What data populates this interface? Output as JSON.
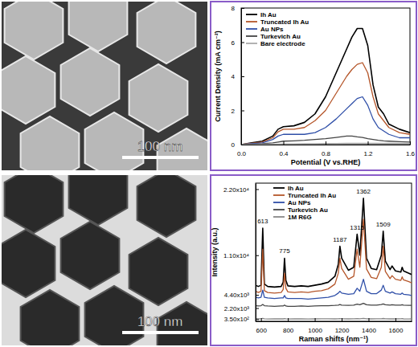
{
  "chart_data": [
    {
      "type": "line",
      "x_label": "Potential (V vs.RHE)",
      "y_label": "Current Density (mA cm⁻²)",
      "x": [
        0,
        0.1,
        0.2,
        0.3,
        0.35,
        0.4,
        0.5,
        0.6,
        0.7,
        0.8,
        0.9,
        1.0,
        1.05,
        1.1,
        1.15,
        1.2,
        1.25,
        1.3,
        1.35,
        1.4,
        1.5,
        1.6
      ],
      "xlim": [
        0,
        1.6
      ],
      "xticks": [
        {
          "value": 0,
          "label": "0.0"
        },
        {
          "value": 0.4,
          "label": "0.4"
        },
        {
          "value": 0.8,
          "label": "0.8"
        },
        {
          "value": 1.2,
          "label": "1.2"
        },
        {
          "value": 1.6,
          "label": "1.6"
        }
      ],
      "ylim": [
        0,
        8
      ],
      "yticks": [
        0,
        2,
        4,
        6,
        8
      ],
      "legend": "top-left",
      "series": [
        {
          "name": "Ih Au",
          "color": "#000000",
          "values": [
            0,
            0.1,
            0.2,
            0.5,
            0.9,
            1.05,
            1.1,
            1.3,
            1.8,
            2.8,
            4.2,
            5.6,
            6.3,
            6.8,
            6.8,
            5.8,
            3.5,
            2.2,
            1.8,
            1.2,
            0.9,
            0.7
          ]
        },
        {
          "name": "Truncated Ih Au",
          "color": "#b5562a",
          "values": [
            0,
            0.08,
            0.15,
            0.4,
            0.75,
            0.9,
            0.9,
            1.0,
            1.4,
            2.0,
            3.0,
            4.0,
            4.4,
            4.7,
            4.8,
            4.2,
            2.8,
            1.8,
            1.4,
            1.0,
            0.7,
            0.6
          ]
        },
        {
          "name": "Au NPs",
          "color": "#2f4fa8",
          "values": [
            0,
            0.05,
            0.1,
            0.3,
            0.5,
            0.6,
            0.6,
            0.6,
            0.7,
            1.0,
            1.5,
            2.1,
            2.4,
            2.7,
            2.8,
            2.3,
            1.5,
            1.0,
            0.8,
            0.6,
            0.4,
            0.4
          ]
        },
        {
          "name": "Turkevich Au",
          "color": "#444444",
          "values": [
            0,
            0.02,
            0.05,
            0.1,
            0.15,
            0.2,
            0.22,
            0.25,
            0.3,
            0.35,
            0.42,
            0.5,
            0.5,
            0.45,
            0.42,
            0.35,
            0.3,
            0.25,
            0.22,
            0.2,
            0.17,
            0.15
          ]
        },
        {
          "name": "Bare electrode",
          "color": "#aaaaaa",
          "values": [
            0,
            0.01,
            0.02,
            0.03,
            0.03,
            0.04,
            0.04,
            0.05,
            0.05,
            0.06,
            0.06,
            0.07,
            0.07,
            0.07,
            0.07,
            0.07,
            0.07,
            0.07,
            0.07,
            0.07,
            0.07,
            0.07
          ]
        }
      ]
    },
    {
      "type": "line",
      "x_label": "Raman shifts (nm⁻¹)",
      "y_label": "Intensity (a.u.)",
      "x": [
        560,
        580,
        600,
        613,
        625,
        650,
        700,
        750,
        765,
        775,
        785,
        800,
        850,
        900,
        950,
        1000,
        1050,
        1100,
        1150,
        1175,
        1187,
        1200,
        1250,
        1290,
        1315,
        1335,
        1362,
        1385,
        1420,
        1460,
        1495,
        1509,
        1525,
        1560,
        1575,
        1600,
        1640,
        1650,
        1660,
        1700,
        1720
      ],
      "xlim": [
        560,
        1720
      ],
      "xticks": [
        600,
        800,
        1000,
        1200,
        1400,
        1600
      ],
      "ylim": [
        0,
        23000
      ],
      "yticks": [
        {
          "value": 350,
          "label": "3.50x10²"
        },
        {
          "value": 2200,
          "label": "2.20x10³"
        },
        {
          "value": 4400,
          "label": "4.40x10³"
        },
        {
          "value": 11000,
          "label": "1.10x10⁴"
        },
        {
          "value": 22000,
          "label": "2.20x10⁴"
        }
      ],
      "legend": "top-left",
      "annotations": [
        {
          "text": "613",
          "x": 613,
          "y": 16300
        },
        {
          "text": "775",
          "x": 775,
          "y": 11300
        },
        {
          "text": "1187",
          "x": 1187,
          "y": 13300
        },
        {
          "text": "1315",
          "x": 1315,
          "y": 15300
        },
        {
          "text": "1362",
          "x": 1362,
          "y": 21300
        },
        {
          "text": "1509",
          "x": 1509,
          "y": 15800
        }
      ],
      "series": [
        {
          "name": "Ih Au",
          "color": "#000000",
          "values": [
            6000,
            5800,
            6000,
            15500,
            6200,
            5800,
            5700,
            5800,
            6500,
            10500,
            6800,
            5900,
            5800,
            5900,
            5800,
            6000,
            6200,
            6500,
            7500,
            9500,
            12500,
            10500,
            8500,
            9000,
            14500,
            11000,
            20500,
            10500,
            8800,
            8600,
            11000,
            15000,
            10000,
            8600,
            9200,
            8400,
            8200,
            9000,
            8400,
            8000,
            7800
          ]
        },
        {
          "name": "Truncated Ih Au",
          "color": "#b5562a",
          "values": [
            5000,
            4800,
            5000,
            12000,
            5100,
            4800,
            4700,
            4800,
            5300,
            8000,
            5500,
            4900,
            4800,
            4900,
            4800,
            5000,
            5100,
            5400,
            6200,
            8000,
            10500,
            8800,
            7000,
            7500,
            12000,
            9000,
            17000,
            8700,
            7300,
            7100,
            9000,
            12500,
            8300,
            7100,
            7600,
            7000,
            6800,
            7400,
            6900,
            6600,
            6400
          ]
        },
        {
          "name": "Au NPs",
          "color": "#2f4fa8",
          "values": [
            4000,
            3900,
            4000,
            5200,
            4000,
            3900,
            3800,
            3900,
            3900,
            4300,
            3900,
            3800,
            3800,
            3800,
            3700,
            3800,
            3900,
            4000,
            4300,
            4700,
            5000,
            4700,
            4500,
            4600,
            5500,
            5000,
            7000,
            5000,
            4600,
            4600,
            5200,
            6000,
            5000,
            4700,
            4900,
            4600,
            4500,
            4700,
            4500,
            4400,
            4300
          ]
        },
        {
          "name": "Turkevich Au",
          "color": "#444444",
          "values": [
            2600,
            2550,
            2600,
            2800,
            2600,
            2550,
            2500,
            2550,
            2550,
            2700,
            2550,
            2500,
            2500,
            2550,
            2500,
            2550,
            2600,
            2600,
            2650,
            2700,
            2800,
            2700,
            2650,
            2700,
            2850,
            2750,
            3000,
            2750,
            2700,
            2700,
            2800,
            2900,
            2750,
            2700,
            2750,
            2700,
            2700,
            2750,
            2700,
            2650,
            2650
          ]
        },
        {
          "name": "1M R6G",
          "color": "#888888",
          "values": [
            450,
            400,
            420,
            500,
            420,
            380,
            400,
            420,
            400,
            450,
            410,
            380,
            400,
            420,
            390,
            400,
            420,
            410,
            400,
            430,
            460,
            420,
            400,
            410,
            450,
            420,
            480,
            410,
            400,
            420,
            430,
            470,
            410,
            400,
            420,
            400,
            410,
            440,
            400,
            390,
            400
          ]
        }
      ]
    }
  ],
  "images": [
    {
      "scale_bar": "100 nm"
    },
    {
      "scale_bar": "100 nm"
    }
  ]
}
